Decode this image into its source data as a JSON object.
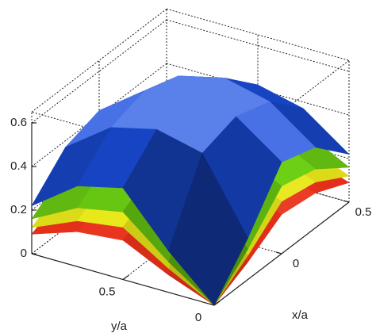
{
  "chart_data": {
    "type": "surface3d",
    "x_label": "x/a",
    "y_label": "y/a",
    "xlim": [
      -0.5,
      0.5
    ],
    "ylim": [
      0,
      1
    ],
    "zlim": [
      0,
      0.65
    ],
    "xticks": [
      0,
      0.5
    ],
    "yticks": [
      0,
      0.5
    ],
    "zticks": [
      0,
      0.2,
      0.4,
      0.6
    ],
    "grid": true,
    "x": [
      -0.5,
      -0.25,
      0,
      0.25,
      0.5
    ],
    "y": [
      0,
      0.25,
      0.5,
      0.75,
      1
    ],
    "series": [
      {
        "color": "#e8301a",
        "z": [
          [
            0,
            0.08,
            0.18,
            0.16,
            0.09
          ],
          [
            0.08,
            0.23,
            0.25,
            0.23,
            0.16
          ],
          [
            0.18,
            0.25,
            0.27,
            0.25,
            0.18
          ],
          [
            0.16,
            0.23,
            0.25,
            0.23,
            0.16
          ],
          [
            0.09,
            0.16,
            0.18,
            0.16,
            0.09
          ]
        ]
      },
      {
        "color": "#e8e81a",
        "z": [
          [
            0,
            0.11,
            0.24,
            0.21,
            0.12
          ],
          [
            0.11,
            0.29,
            0.32,
            0.29,
            0.21
          ],
          [
            0.24,
            0.32,
            0.35,
            0.32,
            0.24
          ],
          [
            0.21,
            0.29,
            0.32,
            0.29,
            0.21
          ],
          [
            0.12,
            0.21,
            0.24,
            0.21,
            0.12
          ]
        ]
      },
      {
        "color": "#6cd012",
        "z": [
          [
            0,
            0.14,
            0.31,
            0.27,
            0.16
          ],
          [
            0.14,
            0.38,
            0.41,
            0.38,
            0.27
          ],
          [
            0.31,
            0.41,
            0.45,
            0.41,
            0.31
          ],
          [
            0.27,
            0.38,
            0.41,
            0.38,
            0.27
          ],
          [
            0.16,
            0.27,
            0.31,
            0.27,
            0.16
          ]
        ]
      },
      {
        "color": "#1a4ee0",
        "z": [
          [
            0,
            0.19,
            0.42,
            0.37,
            0.22
          ],
          [
            0.19,
            0.52,
            0.57,
            0.52,
            0.37
          ],
          [
            0.42,
            0.57,
            0.62,
            0.57,
            0.42
          ],
          [
            0.37,
            0.52,
            0.57,
            0.52,
            0.37
          ],
          [
            0.22,
            0.37,
            0.42,
            0.37,
            0.22
          ]
        ]
      }
    ]
  }
}
